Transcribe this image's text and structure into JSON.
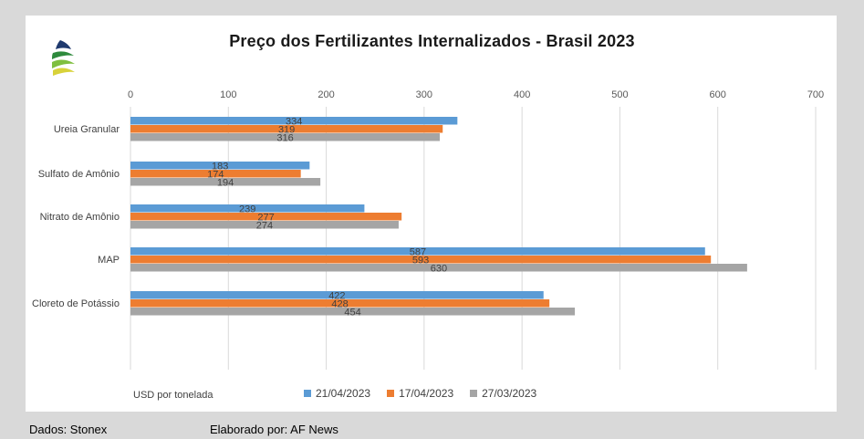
{
  "colors": {
    "s1": "#5b9bd5",
    "s2": "#ed7d31",
    "s3": "#a5a5a5",
    "grid": "#d9d9d9"
  },
  "logo_icon": "leaf-stack-logo-icon",
  "chart_data": {
    "type": "bar",
    "orientation": "horizontal",
    "title": "Preço dos Fertilizantes Internalizados  - Brasil 2023",
    "xlabel": "USD por tonelada",
    "ylabel": "",
    "xlim": [
      0,
      700
    ],
    "x_ticks": [
      0,
      100,
      200,
      300,
      400,
      500,
      600,
      700
    ],
    "grid": true,
    "legend_position": "bottom",
    "data_labels": true,
    "categories": [
      "Ureia Granular",
      "Sulfato de Amônio",
      "Nitrato de Amônio",
      "MAP",
      "Cloreto de Potássio"
    ],
    "series": [
      {
        "name": "21/04/2023",
        "values": [
          334,
          183,
          239,
          587,
          422
        ]
      },
      {
        "name": "17/04/2023",
        "values": [
          319,
          174,
          277,
          593,
          428
        ]
      },
      {
        "name": "27/03/2023",
        "values": [
          316,
          194,
          274,
          630,
          454
        ]
      }
    ]
  },
  "footer": {
    "source": "Dados: Stonex",
    "author": "Elaborado por: AF News"
  }
}
